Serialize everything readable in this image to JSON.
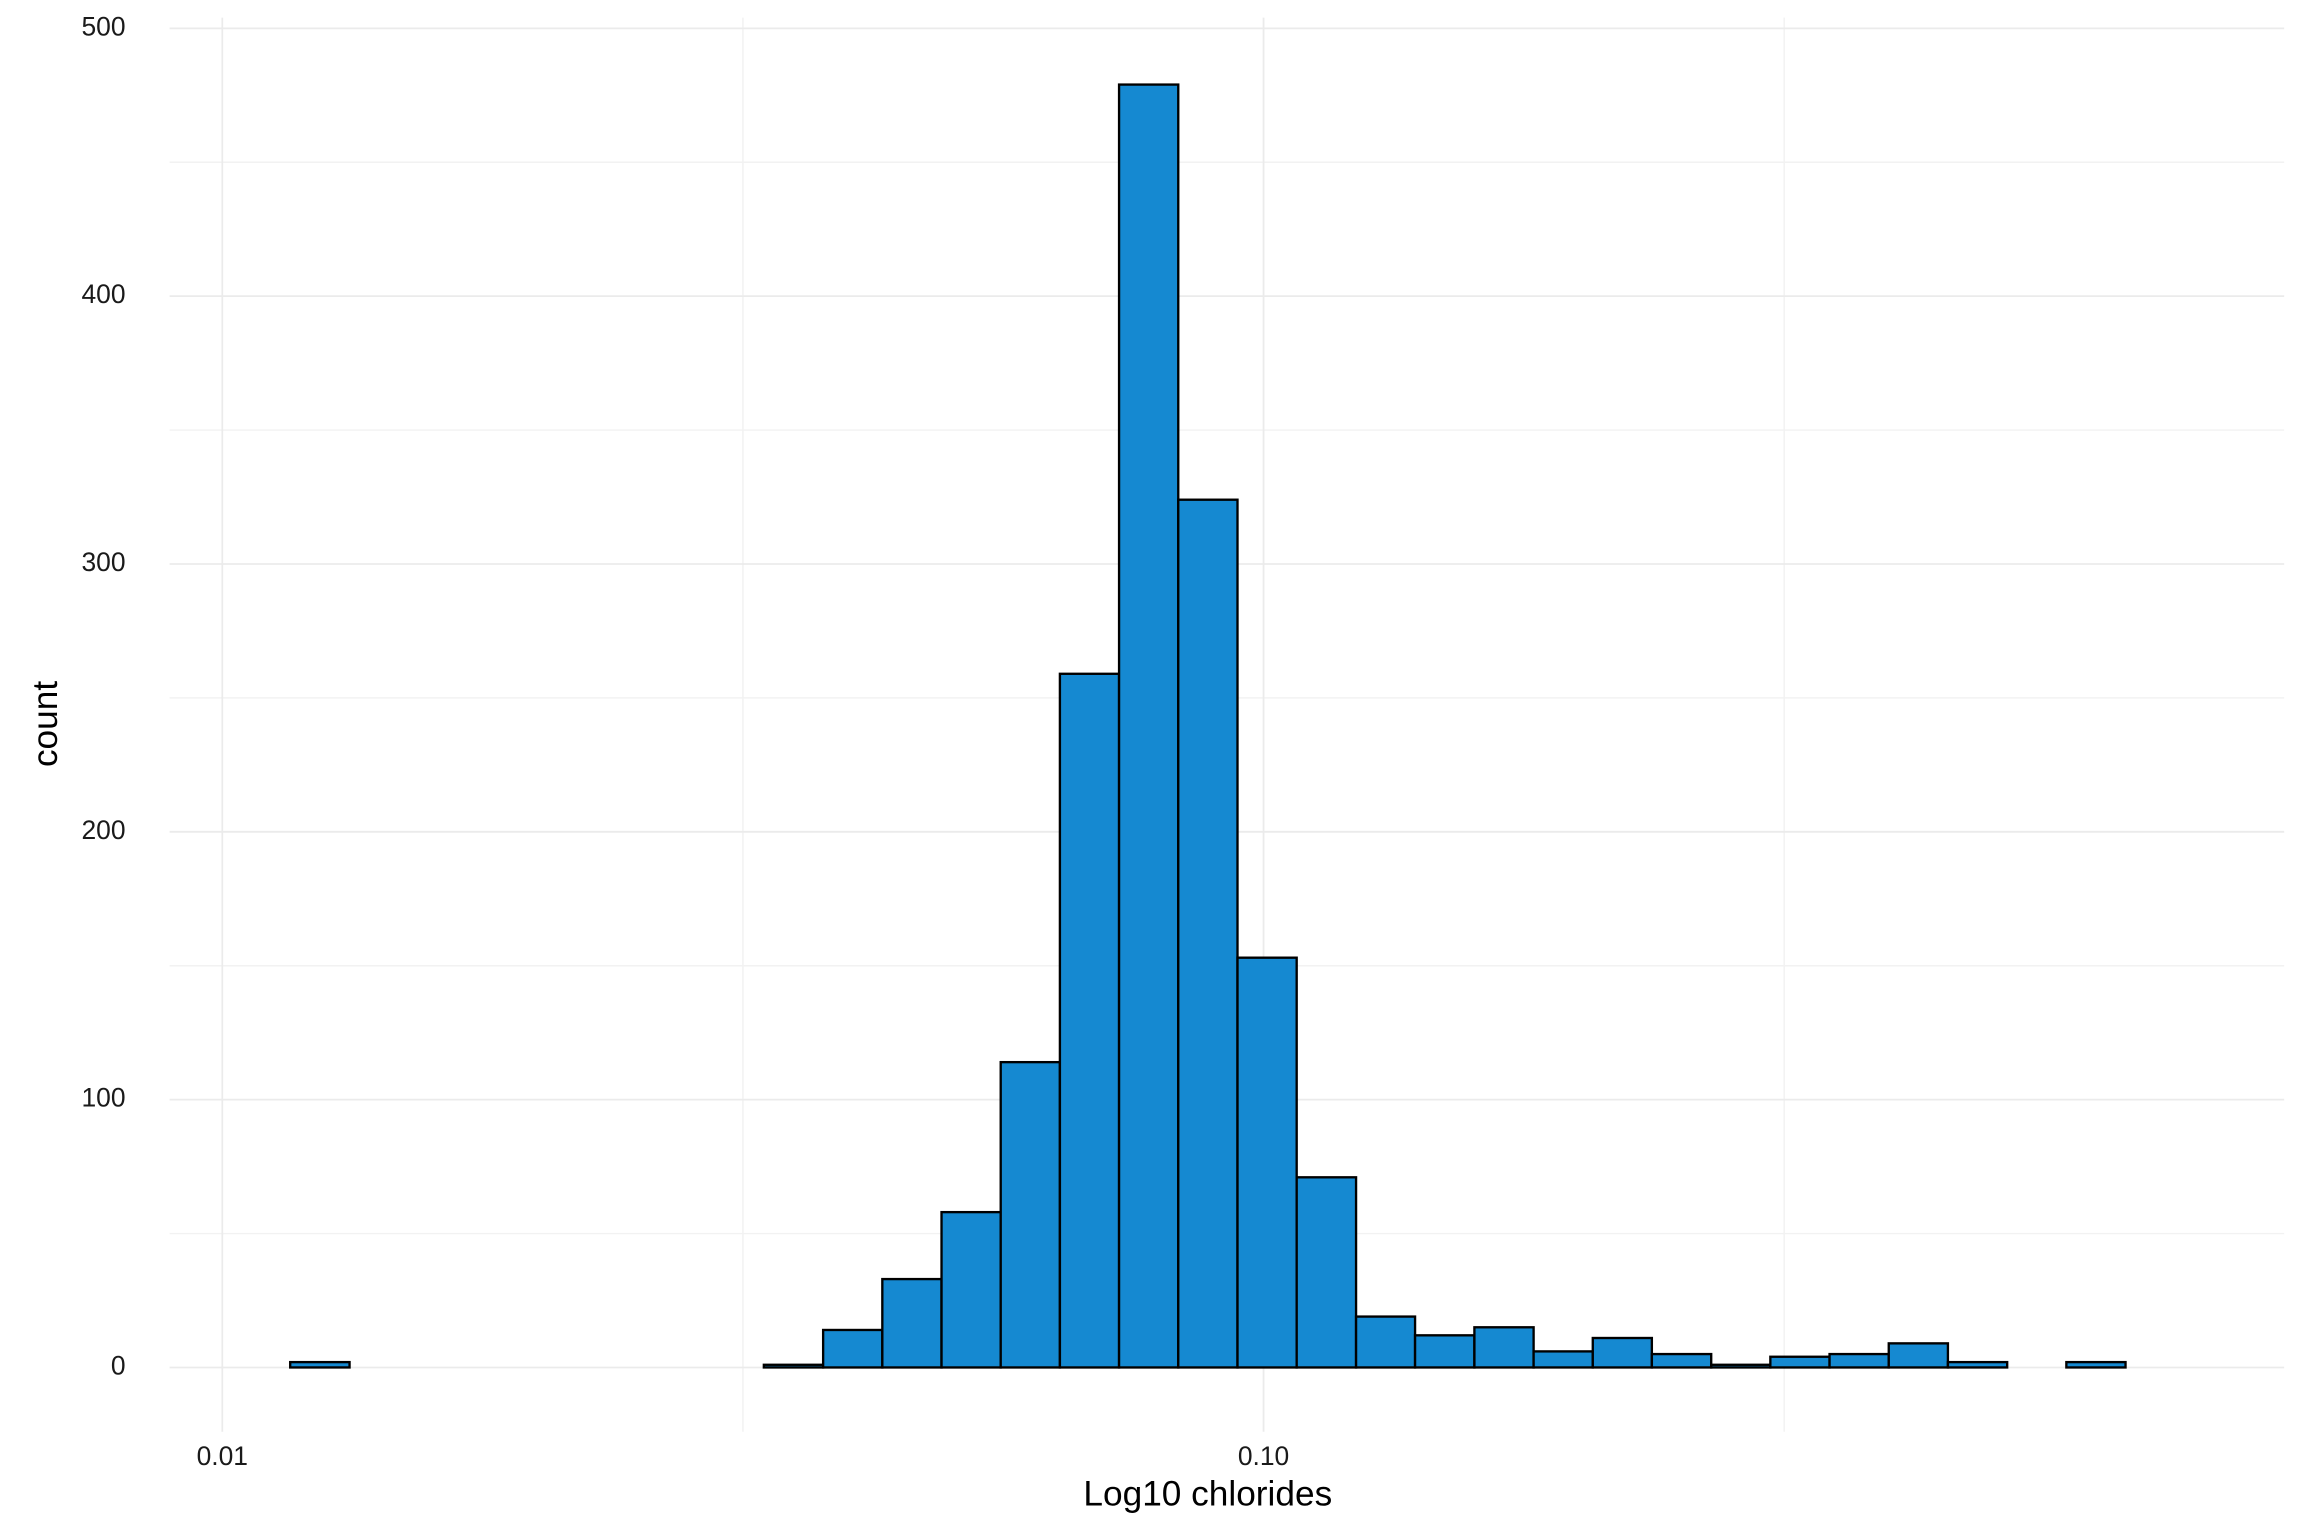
{
  "chart_data": {
    "type": "histogram",
    "xlabel": "Log10 chlorides",
    "ylabel": "count",
    "bins": [
      0.0102,
      0.01162,
      0.01325,
      0.0151,
      0.01721,
      0.01962,
      0.02236,
      0.02549,
      0.02906,
      0.03312,
      0.03776,
      0.04304,
      0.04906,
      0.05592,
      0.06374,
      0.07265,
      0.08281,
      0.0944,
      0.1076,
      0.1227,
      0.1398,
      0.1594,
      0.1817,
      0.2071,
      0.236,
      0.2691,
      0.3067,
      0.3496,
      0.3985,
      0.4542,
      0.5178,
      0.5902,
      0.6727,
      0.7668
    ],
    "counts": [
      0,
      2,
      0,
      0,
      0,
      0,
      0,
      0,
      0,
      1,
      14,
      33,
      58,
      114,
      259,
      479,
      324,
      153,
      71,
      19,
      12,
      15,
      6,
      11,
      5,
      1,
      4,
      5,
      9,
      2,
      0,
      2,
      0
    ],
    "color": "#1589d1",
    "edgecolor": "#000000",
    "xscale": "log",
    "xlim": [
      0.0089,
      0.9554
    ],
    "xticks": [
      {
        "value": 0.01,
        "label": "0.01"
      },
      {
        "value": 0.1,
        "label": "0.10"
      }
    ],
    "ylim": [
      -24,
      504
    ],
    "yticks": [
      0,
      100,
      200,
      300,
      400,
      500
    ],
    "grid": true
  }
}
